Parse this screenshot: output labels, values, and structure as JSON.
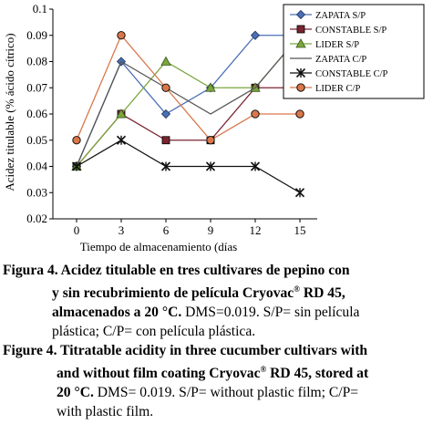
{
  "chart_data": {
    "type": "line",
    "x": [
      0,
      3,
      6,
      9,
      12,
      15
    ],
    "xlabel": "Tiempo de almacenamiento (días",
    "ylabel": "Acidez titulable (% ácido cítrico)",
    "ylim": [
      0.02,
      0.1
    ],
    "yticks": [
      "0.02",
      "0.03",
      "0.04",
      "0.05",
      "0.06",
      "0.07",
      "0.08",
      "0.09",
      "0.1"
    ],
    "xticks": [
      "0",
      "3",
      "6",
      "9",
      "12",
      "15"
    ],
    "grid": false,
    "legend_position": "right",
    "series": [
      {
        "name": "ZAPATA S/P",
        "marker": "diamond",
        "values": [
          0.04,
          0.08,
          0.06,
          0.07,
          0.09,
          0.09
        ]
      },
      {
        "name": "CONSTABLE S/P",
        "marker": "square",
        "values": [
          0.04,
          0.06,
          0.05,
          0.05,
          0.07,
          0.07
        ]
      },
      {
        "name": "LIDER S/P",
        "marker": "triangle",
        "values": [
          0.04,
          0.06,
          0.08,
          0.07,
          0.07,
          0.09
        ]
      },
      {
        "name": "ZAPATA C/P",
        "marker": "none",
        "values": [
          0.04,
          0.08,
          0.07,
          0.06,
          0.07,
          0.09
        ]
      },
      {
        "name": "CONSTABLE C/P",
        "marker": "star",
        "values": [
          0.04,
          0.05,
          0.04,
          0.04,
          0.04,
          0.03
        ]
      },
      {
        "name": "LIDER C/P",
        "marker": "circle",
        "values": [
          0.05,
          0.09,
          0.07,
          0.05,
          0.06,
          0.06
        ]
      }
    ]
  },
  "caption_es": {
    "label_line1": "Figura 4. Acidez titulable en tres cultivares de pepino con",
    "label_line2": "y sin recubrimiento de película Cryovac",
    "sup": "®",
    "label_line2b": " RD 45,",
    "label_line3": "almacenados a 20 °C.",
    "text_line3": " DMS=0.019. S/P= sin película",
    "text_line4": "plástica; C/P= con película plástica."
  },
  "caption_en": {
    "label_line1": "Figure 4. Titratable acidity in three cucumber cultivars with",
    "label_line2": "and without film coating Cryovac",
    "sup": "®",
    "label_line2b": " RD 45, stored at",
    "label_line3": "20 °C.",
    "text_line3": " DMS= 0.019. S/P= without plastic film; C/P=",
    "text_line4": "with plastic film."
  },
  "colors": {
    "zapata_sp": "#4a6fb5",
    "constable_sp": "#7a2430",
    "lider_sp": "#7aa63c",
    "zapata_cp": "#555555",
    "constable_cp": "#111111",
    "lider_cp": "#d9774a"
  }
}
